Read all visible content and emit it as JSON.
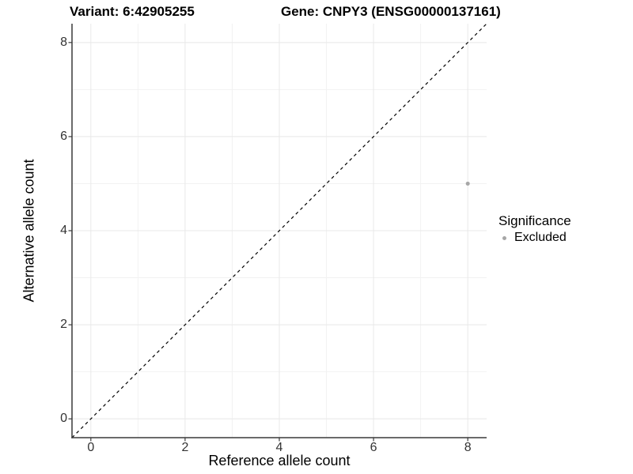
{
  "figure": {
    "background": "#ffffff"
  },
  "titles": {
    "variant": "Variant: 6:42905255",
    "gene": "Gene: CNPY3 (ENSG00000137161)"
  },
  "legend": {
    "title": "Significance",
    "entries": [
      {
        "label": "Excluded",
        "color": "#a6a6a6",
        "marker": "dot"
      }
    ]
  },
  "chart_data": {
    "type": "scatter",
    "title": "Variant: 6:42905255    Gene: CNPY3 (ENSG00000137161)",
    "xlabel": "Reference allele count",
    "ylabel": "Alternative allele count",
    "xlim": [
      -0.4,
      8.4
    ],
    "ylim": [
      -0.4,
      8.4
    ],
    "x_ticks": [
      0,
      2,
      4,
      6,
      8
    ],
    "y_ticks": [
      0,
      2,
      4,
      6,
      8
    ],
    "x_minor": [
      1,
      3,
      5,
      7
    ],
    "y_minor": [
      1,
      3,
      5,
      7
    ],
    "grid": "major+minor",
    "legend_position": "right-center",
    "series": [
      {
        "name": "Excluded",
        "color": "#a6a6a6",
        "marker": "circle",
        "marker_size": 5,
        "points": [
          {
            "x": 8,
            "y": 5
          }
        ]
      }
    ],
    "reference_line": {
      "shape": "identity y=x",
      "style": "dashed",
      "color": "#000000",
      "from": [
        -0.4,
        -0.4
      ],
      "to": [
        8.4,
        8.4
      ]
    }
  },
  "colors": {
    "grid_major": "#e8e8e8",
    "grid_minor": "#f2f2f2",
    "axis_line": "#3a3a3a",
    "tick_label": "#333333",
    "point": "#a6a6a6"
  }
}
